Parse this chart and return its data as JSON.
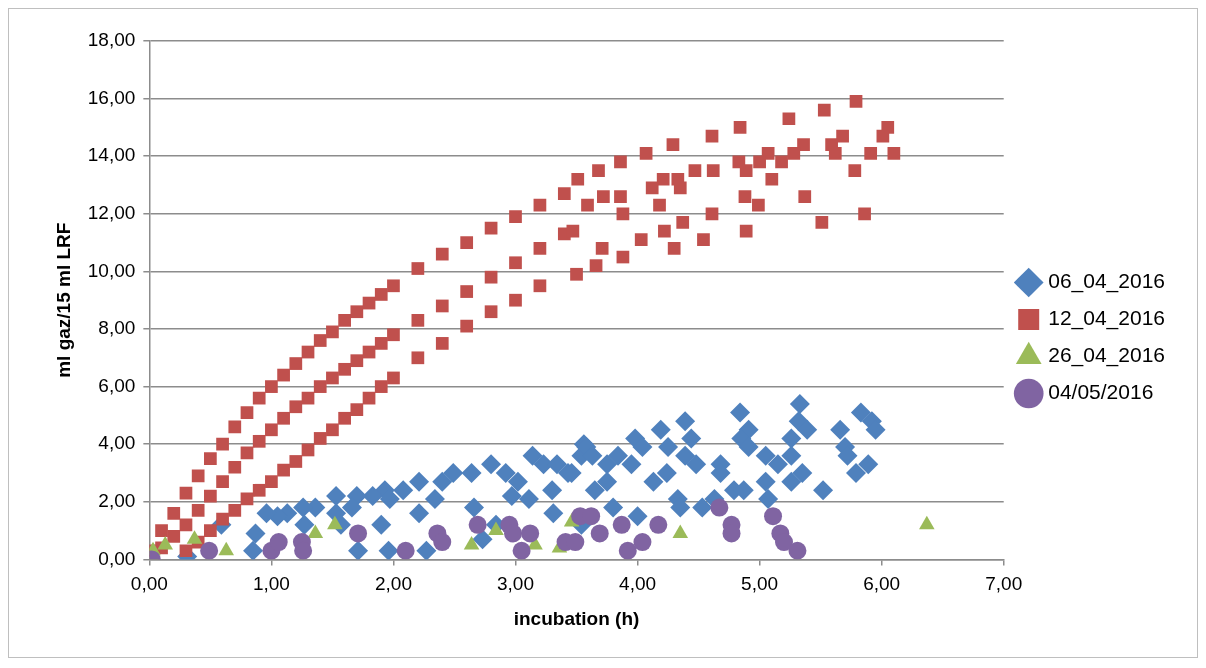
{
  "chart_data": {
    "type": "scatter",
    "xlabel": "incubation (h)",
    "ylabel": "ml gaz/15 ml LRF",
    "xlim": [
      0,
      7
    ],
    "ylim": [
      0,
      18
    ],
    "xticks": [
      {
        "value": 0,
        "label": "0,00"
      },
      {
        "value": 1,
        "label": "1,00"
      },
      {
        "value": 2,
        "label": "2,00"
      },
      {
        "value": 3,
        "label": "3,00"
      },
      {
        "value": 4,
        "label": "4,00"
      },
      {
        "value": 5,
        "label": "5,00"
      },
      {
        "value": 6,
        "label": "6,00"
      },
      {
        "value": 7,
        "label": "7,00"
      }
    ],
    "yticks": [
      {
        "value": 0,
        "label": "0,00"
      },
      {
        "value": 2,
        "label": "2,00"
      },
      {
        "value": 4,
        "label": "4,00"
      },
      {
        "value": 6,
        "label": "6,00"
      },
      {
        "value": 8,
        "label": "8,00"
      },
      {
        "value": 10,
        "label": "10,00"
      },
      {
        "value": 12,
        "label": "12,00"
      },
      {
        "value": 14,
        "label": "14,00"
      },
      {
        "value": 16,
        "label": "16,00"
      },
      {
        "value": 18,
        "label": "18,00"
      }
    ],
    "grid": "y",
    "legend": "right",
    "series": [
      {
        "name": "06_04_2016",
        "color": "#4f81bd",
        "marker": "diamond",
        "x": [
          3.56,
          3.54,
          3.14,
          3.23,
          3.34,
          3.43,
          2.8,
          2.92,
          3.02,
          2.64,
          2.49,
          2.4,
          2.21,
          2.08,
          1.93,
          1.83,
          1.7,
          1.53,
          1.36,
          1.26,
          1.13,
          1.05,
          3.3,
          3.11,
          2.97,
          2.66,
          2.34,
          2.21,
          1.97,
          1.9,
          1.66,
          1.53,
          1.27,
          0.96,
          0.87,
          0.85,
          1.71,
          1.96,
          2.27,
          3.31,
          2.84,
          2.73,
          1.57,
          0.59,
          0.31,
          5.33,
          4.84,
          5.83,
          4.39,
          5.32,
          4.91,
          5.39,
          5.66,
          5.92,
          5.95,
          4.19,
          3.98,
          4.44,
          4.85,
          5.26,
          3.58,
          4.04,
          4.25,
          4.91,
          5.7,
          3.63,
          3.84,
          4.39,
          5.05,
          5.26,
          5.72,
          3.75,
          3.95,
          4.48,
          4.68,
          5.15,
          5.89,
          3.46,
          4.24,
          4.68,
          5.35,
          5.79,
          3.75,
          4.13,
          5.05,
          5.26,
          3.65,
          4.79,
          4.87,
          5.52,
          4.33,
          4.63,
          5.07,
          4.35,
          4.53,
          3.8,
          4.0,
          3.54
        ],
        "values": [
          4.0,
          3.6,
          3.6,
          3.3,
          3.3,
          3.0,
          3.3,
          3.0,
          2.7,
          3.0,
          3.0,
          2.7,
          2.7,
          2.4,
          2.4,
          2.2,
          2.2,
          2.2,
          1.8,
          1.8,
          1.6,
          1.5,
          2.4,
          2.1,
          2.2,
          1.8,
          2.1,
          1.6,
          2.1,
          1.2,
          1.8,
          1.6,
          1.2,
          1.6,
          0.9,
          0.3,
          0.3,
          0.3,
          0.3,
          1.6,
          1.2,
          0.7,
          1.2,
          1.2,
          0.1,
          5.4,
          5.1,
          5.1,
          4.8,
          4.8,
          4.5,
          4.5,
          4.5,
          4.8,
          4.5,
          4.5,
          4.2,
          4.2,
          4.2,
          4.2,
          3.9,
          3.9,
          3.9,
          3.9,
          3.9,
          3.6,
          3.6,
          3.6,
          3.6,
          3.6,
          3.6,
          3.3,
          3.3,
          3.3,
          3.3,
          3.3,
          3.3,
          3.0,
          3.0,
          3.0,
          3.0,
          3.0,
          2.7,
          2.7,
          2.7,
          2.7,
          2.4,
          2.4,
          2.4,
          2.4,
          2.1,
          2.1,
          2.1,
          1.8,
          1.8,
          1.8,
          1.5,
          1.2
        ]
      },
      {
        "name": "12_04_2016",
        "color": "#c0504d",
        "marker": "square",
        "x": [
          0.0,
          0.1,
          0.2,
          0.3,
          0.4,
          0.5,
          0.6,
          0.7,
          0.8,
          0.9,
          1.0,
          1.1,
          1.2,
          1.3,
          1.4,
          1.5,
          1.6,
          1.7,
          1.8,
          1.9,
          2.0,
          2.2,
          2.4,
          2.6,
          2.8,
          3.0,
          3.2,
          3.4,
          0.1,
          0.2,
          0.3,
          0.4,
          0.5,
          0.6,
          0.7,
          0.8,
          0.9,
          1.0,
          1.1,
          1.2,
          1.3,
          1.4,
          1.5,
          1.6,
          1.7,
          1.8,
          1.9,
          2.0,
          2.2,
          2.4,
          2.6,
          2.8,
          3.0,
          3.2,
          3.4,
          0.3,
          0.4,
          0.5,
          0.6,
          0.7,
          0.8,
          0.9,
          1.0,
          1.1,
          1.2,
          1.3,
          1.4,
          1.5,
          1.6,
          1.7,
          1.8,
          1.9,
          2.0,
          2.2,
          2.4,
          2.6,
          2.8,
          3.0,
          3.2,
          5.79,
          5.53,
          5.24,
          4.84,
          4.61,
          4.29,
          4.07,
          3.86,
          3.68,
          3.51,
          6.05,
          6.01,
          6.1,
          5.91,
          5.78,
          5.68,
          5.59,
          5.62,
          5.36,
          5.28,
          5.07,
          5.18,
          5.0,
          4.89,
          5.1,
          4.83,
          4.62,
          4.47,
          4.35,
          4.33,
          4.21,
          4.12,
          4.18,
          3.86,
          3.72,
          3.59,
          3.88,
          4.88,
          4.99,
          5.37,
          5.86,
          5.51,
          4.89,
          4.61,
          4.37,
          4.54,
          4.3,
          4.22,
          4.03,
          3.88,
          3.71,
          3.66,
          3.5,
          3.47
        ],
        "values": [
          0.3,
          1.0,
          1.6,
          2.3,
          2.9,
          3.5,
          4.0,
          4.6,
          5.1,
          5.6,
          6.0,
          6.4,
          6.8,
          7.2,
          7.6,
          7.9,
          8.3,
          8.6,
          8.9,
          9.2,
          9.5,
          10.1,
          10.6,
          11.0,
          11.5,
          11.9,
          12.3,
          12.7,
          0.4,
          0.8,
          1.2,
          1.7,
          2.2,
          2.7,
          3.2,
          3.7,
          4.1,
          4.5,
          4.9,
          5.3,
          5.6,
          6.0,
          6.3,
          6.6,
          6.9,
          7.2,
          7.5,
          7.8,
          8.3,
          8.8,
          9.3,
          9.8,
          10.3,
          10.8,
          11.3,
          0.3,
          0.6,
          1.0,
          1.4,
          1.7,
          2.1,
          2.4,
          2.7,
          3.1,
          3.4,
          3.8,
          4.2,
          4.5,
          4.9,
          5.2,
          5.6,
          6.0,
          6.3,
          7.0,
          7.5,
          8.1,
          8.6,
          9.0,
          9.5,
          15.9,
          15.6,
          15.3,
          15.0,
          14.7,
          14.4,
          14.1,
          13.8,
          13.5,
          13.2,
          15.0,
          14.7,
          14.1,
          14.1,
          13.5,
          14.7,
          14.4,
          14.1,
          14.4,
          14.1,
          14.1,
          13.8,
          13.8,
          13.5,
          13.2,
          13.8,
          13.5,
          13.5,
          12.9,
          13.2,
          13.2,
          12.9,
          12.3,
          12.6,
          12.6,
          12.3,
          12.0,
          12.6,
          12.3,
          12.6,
          12.0,
          11.7,
          11.4,
          12.0,
          11.7,
          11.1,
          10.8,
          11.4,
          11.1,
          10.5,
          10.8,
          10.2,
          9.9,
          11.4
        ]
      },
      {
        "name": "26_04_2016",
        "color": "#9bbb59",
        "marker": "triangle",
        "x": [
          0.03,
          0.13,
          0.37,
          0.63,
          0.03,
          1.36,
          1.52,
          2.64,
          2.84,
          3.16,
          3.36,
          4.35,
          6.37,
          3.46
        ],
        "values": [
          0.0,
          0.5,
          0.7,
          0.3,
          0.3,
          0.9,
          1.2,
          0.5,
          1.0,
          0.5,
          0.4,
          0.9,
          1.2,
          1.3
        ]
      },
      {
        "name": "04/05/2016",
        "color": "#8064a2",
        "marker": "circle",
        "x": [
          0.02,
          0.49,
          1.0,
          1.06,
          1.25,
          1.26,
          1.71,
          2.1,
          2.36,
          2.4,
          2.69,
          2.95,
          2.98,
          3.12,
          3.05,
          3.41,
          3.53,
          3.62,
          3.49,
          3.69,
          3.87,
          3.92,
          4.04,
          4.17,
          4.67,
          4.77,
          4.77,
          5.11,
          5.17,
          5.2,
          5.31
        ],
        "values": [
          0.0,
          0.3,
          0.3,
          0.6,
          0.6,
          0.3,
          0.9,
          0.3,
          0.9,
          0.6,
          1.2,
          1.2,
          0.9,
          0.9,
          0.3,
          0.6,
          1.5,
          1.5,
          0.6,
          0.9,
          1.2,
          0.3,
          0.6,
          1.2,
          1.8,
          1.2,
          0.9,
          1.5,
          0.9,
          0.6,
          0.3
        ]
      }
    ]
  }
}
